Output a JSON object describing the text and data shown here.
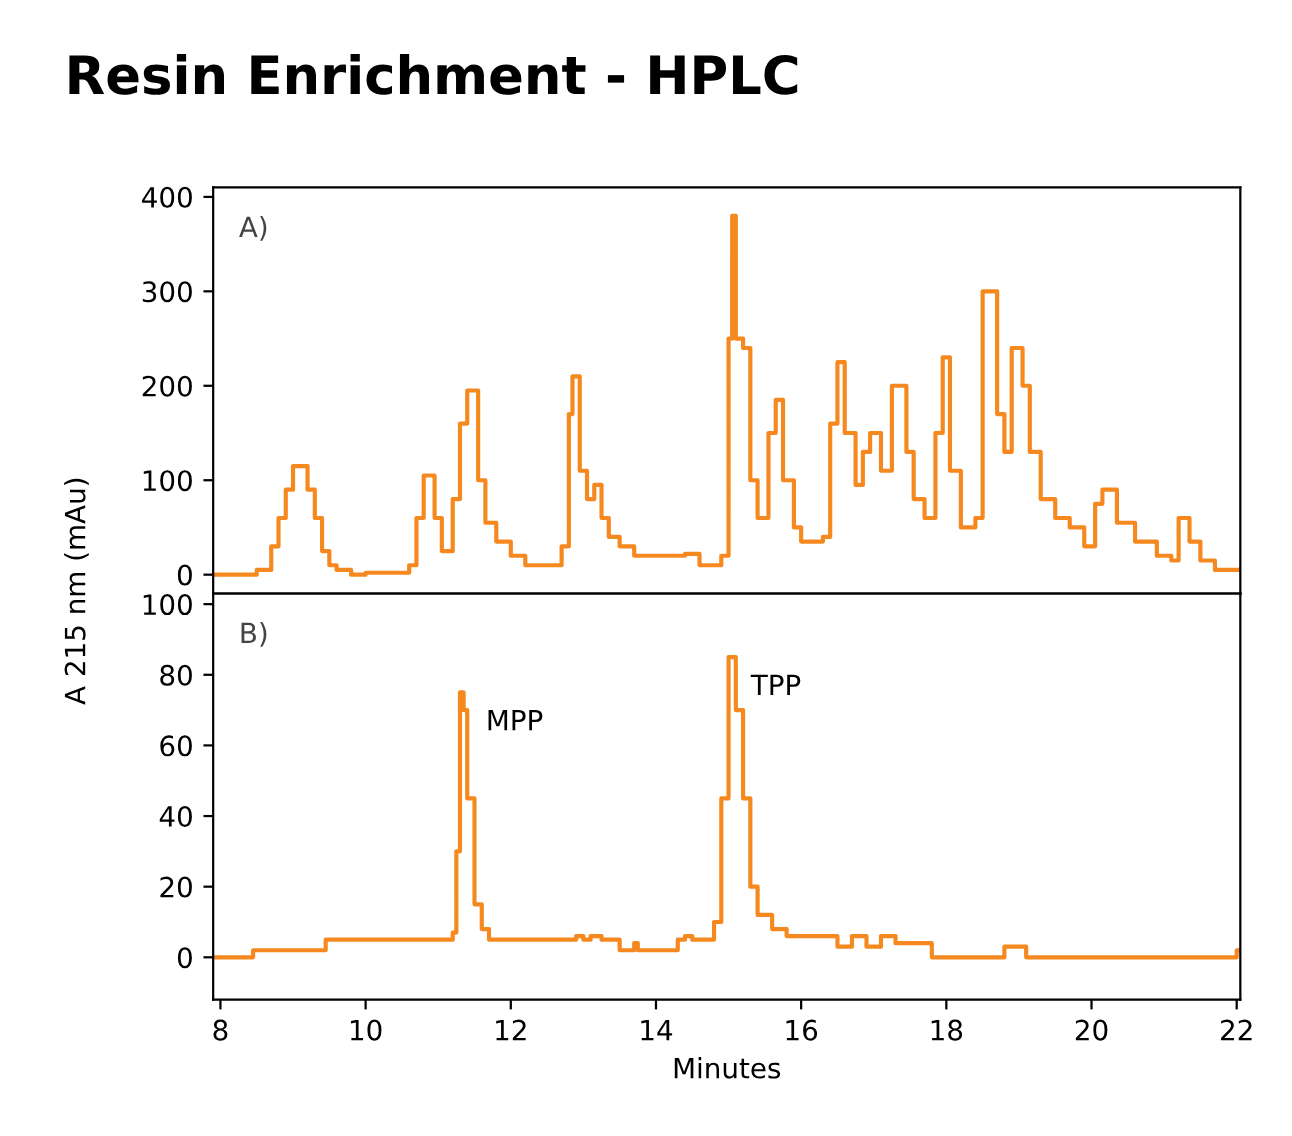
{
  "chart_data": [
    {
      "type": "step",
      "title": "Resin Enrichment - HPLC",
      "ylabel": "A 215 nm (mAu)",
      "annotations": [
        "A)"
      ],
      "tick_labels": "y",
      "grid": false,
      "legend": false,
      "xlim": [
        7.9,
        22.05
      ],
      "ylim": [
        -20,
        410
      ],
      "yticks": [
        0,
        100,
        200,
        300,
        400
      ],
      "series": [
        {
          "color": "#f5891f",
          "x": [
            7.9,
            8.5,
            8.7,
            8.8,
            8.9,
            9.0,
            9.2,
            9.3,
            9.4,
            9.5,
            9.6,
            9.8,
            10.0,
            10.6,
            10.7,
            10.8,
            10.95,
            11.05,
            11.2,
            11.3,
            11.4,
            11.55,
            11.65,
            11.8,
            12.0,
            12.2,
            12.5,
            12.7,
            12.8,
            12.85,
            12.95,
            13.05,
            13.15,
            13.25,
            13.35,
            13.5,
            13.7,
            14.0,
            14.4,
            14.6,
            14.9,
            15.0,
            15.05,
            15.1,
            15.2,
            15.3,
            15.4,
            15.55,
            15.65,
            15.75,
            15.9,
            16.0,
            16.3,
            16.4,
            16.5,
            16.6,
            16.75,
            16.85,
            16.95,
            17.1,
            17.25,
            17.45,
            17.55,
            17.7,
            17.85,
            17.95,
            18.05,
            18.2,
            18.4,
            18.5,
            18.7,
            18.8,
            18.9,
            19.05,
            19.15,
            19.3,
            19.5,
            19.7,
            19.9,
            20.05,
            20.15,
            20.35,
            20.6,
            20.9,
            21.1,
            21.2,
            21.35,
            21.5,
            21.7,
            22.05
          ],
          "values": [
            0,
            5,
            30,
            60,
            90,
            115,
            90,
            60,
            25,
            10,
            5,
            0,
            2,
            10,
            60,
            105,
            60,
            25,
            80,
            160,
            195,
            100,
            55,
            35,
            20,
            10,
            10,
            30,
            170,
            210,
            110,
            80,
            95,
            60,
            40,
            30,
            20,
            20,
            22,
            10,
            20,
            250,
            380,
            250,
            240,
            100,
            60,
            150,
            185,
            100,
            50,
            35,
            40,
            160,
            225,
            150,
            95,
            130,
            150,
            110,
            200,
            130,
            80,
            60,
            150,
            230,
            110,
            50,
            60,
            300,
            170,
            130,
            240,
            200,
            130,
            80,
            60,
            50,
            30,
            75,
            90,
            55,
            35,
            20,
            15,
            60,
            35,
            15,
            5,
            5
          ]
        }
      ]
    },
    {
      "type": "step",
      "xlabel": "Minutes",
      "annotations": [
        "B)",
        {
          "text": "MPP",
          "x": 11.35,
          "y": 75
        },
        {
          "text": "TPP",
          "x": 15.0,
          "y": 85
        }
      ],
      "grid": false,
      "legend": false,
      "xlim": [
        7.9,
        22.05
      ],
      "ylim": [
        -12,
        103
      ],
      "xticks": [
        8,
        10,
        12,
        14,
        16,
        18,
        20,
        22
      ],
      "yticks": [
        0,
        20,
        40,
        60,
        80,
        100
      ],
      "series": [
        {
          "color": "#f5891f",
          "x": [
            7.9,
            8.45,
            9.45,
            11.2,
            11.25,
            11.3,
            11.35,
            11.4,
            11.5,
            11.6,
            11.7,
            11.9,
            12.9,
            13.0,
            13.1,
            13.25,
            13.5,
            13.7,
            13.75,
            14.3,
            14.4,
            14.5,
            14.8,
            14.9,
            15.0,
            15.1,
            15.2,
            15.3,
            15.4,
            15.6,
            15.8,
            16.5,
            16.7,
            16.9,
            17.1,
            17.3,
            17.8,
            18.8,
            19.1,
            22.0,
            22.05
          ],
          "values": [
            0,
            2,
            5,
            7,
            30,
            75,
            70,
            45,
            15,
            8,
            5,
            5,
            6,
            5,
            6,
            5,
            2,
            4,
            2,
            5,
            6,
            5,
            10,
            45,
            85,
            70,
            45,
            20,
            12,
            8,
            6,
            3,
            6,
            3,
            6,
            4,
            0,
            3,
            0,
            2,
            2
          ]
        }
      ]
    }
  ]
}
